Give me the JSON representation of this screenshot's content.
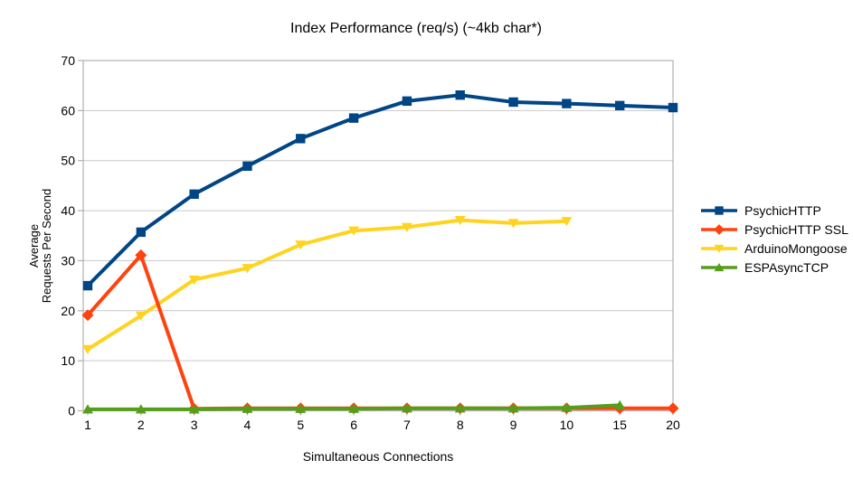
{
  "chart_data": {
    "type": "line",
    "title": "Index Performance (req/s) (~4kb char*)",
    "xlabel": "Simultaneous Connections",
    "ylabel_lines": [
      "Average",
      "Requests Per Second"
    ],
    "categories": [
      "1",
      "2",
      "3",
      "4",
      "5",
      "6",
      "7",
      "8",
      "9",
      "10",
      "15",
      "20"
    ],
    "y_ticks": [
      0,
      10,
      20,
      30,
      40,
      50,
      60,
      70
    ],
    "ylim": [
      0,
      70
    ],
    "grid": "horizontal",
    "legend_position": "right",
    "background_color": "#ffffff",
    "gridline_color": "#c9c9c9",
    "axis_color": "#b0b0b0",
    "text_color": "#000000",
    "series": [
      {
        "name": "PsychicHTTP",
        "color": "#004586",
        "marker": "square",
        "values": [
          25.0,
          35.7,
          43.3,
          48.9,
          54.4,
          58.5,
          61.9,
          63.1,
          61.7,
          61.4,
          61.0,
          60.6
        ]
      },
      {
        "name": "PsychicHTTP SSL",
        "color": "#ff420e",
        "marker": "diamond",
        "values": [
          19.1,
          31.1,
          0.4,
          0.5,
          0.5,
          0.5,
          0.5,
          0.5,
          0.5,
          0.5,
          0.5,
          0.5
        ]
      },
      {
        "name": "ArduinoMongoose",
        "color": "#ffd320",
        "marker": "triangle-down",
        "values": [
          12.3,
          19.0,
          26.2,
          28.5,
          33.2,
          36.0,
          36.7,
          38.1,
          37.5,
          37.9,
          null,
          null
        ]
      },
      {
        "name": "ESPAsyncTCP",
        "color": "#579d1c",
        "marker": "triangle-up",
        "values": [
          0.3,
          0.3,
          0.3,
          0.4,
          0.4,
          0.4,
          0.5,
          0.5,
          0.5,
          0.6,
          1.1,
          null
        ]
      }
    ],
    "z_order": [
      0,
      2,
      1,
      3
    ]
  }
}
